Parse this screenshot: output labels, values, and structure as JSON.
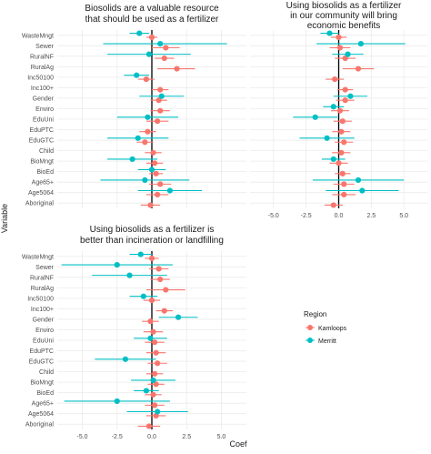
{
  "figure": {
    "x_axis_title": "Coef",
    "y_axis_title": "Variable"
  },
  "legend": {
    "title": "Region",
    "entries": [
      {
        "label": "Kamloops",
        "color": "#F8766D"
      },
      {
        "label": "Merritt",
        "color": "#00BFC4"
      }
    ]
  },
  "chart_data": [
    {
      "type": "scatter",
      "subtype": "coefficient-plot-with-error-bars",
      "title_lines": [
        "Biosolids are a valuable resource",
        "that should be used as a fertilizer"
      ],
      "xlabel": "",
      "ylabel": "Variable",
      "x_ticks_shown": false,
      "xlim": [
        -6.8,
        6.8
      ],
      "grid": true,
      "reference_line_x": 0,
      "variables": [
        "WasteMngt",
        "Sewer",
        "RuralNF",
        "RuralAg",
        "Inc50100",
        "Inc100+",
        "Gender",
        "Enviro",
        "EduUni",
        "EduPTC",
        "EduGTC",
        "Child",
        "BioMngt",
        "BioEd",
        "Age65+",
        "Age5064",
        "Aboriginal"
      ],
      "series": [
        {
          "name": "Kamloops",
          "color": "#F8766D",
          "estimates": [
            0.0,
            1.0,
            0.9,
            1.8,
            -0.4,
            0.6,
            0.5,
            0.6,
            0.4,
            -0.3,
            -0.5,
            0.1,
            0.2,
            0.3,
            0.6,
            0.4,
            -0.1
          ],
          "lower": [
            -0.4,
            0.0,
            0.2,
            0.4,
            -1.0,
            0.0,
            -0.1,
            -0.1,
            -0.4,
            -0.9,
            -1.1,
            -0.5,
            -0.4,
            -0.2,
            -0.2,
            -0.4,
            -0.8
          ],
          "upper": [
            0.4,
            2.0,
            1.6,
            3.1,
            0.2,
            1.2,
            1.1,
            1.3,
            1.2,
            0.3,
            0.1,
            0.7,
            0.8,
            0.8,
            1.4,
            1.2,
            0.6
          ]
        },
        {
          "name": "Merritt",
          "color": "#00BFC4",
          "estimates": [
            -0.9,
            0.6,
            -0.2,
            null,
            -1.1,
            null,
            0.7,
            null,
            -0.3,
            null,
            -1.0,
            null,
            -1.4,
            0.0,
            -0.5,
            1.3,
            null
          ],
          "lower": [
            -1.6,
            -3.5,
            -3.2,
            null,
            -2.0,
            null,
            -0.9,
            null,
            -2.5,
            null,
            -3.2,
            null,
            -3.2,
            -1.0,
            -3.7,
            -1.0,
            null
          ],
          "upper": [
            -0.2,
            5.4,
            2.8,
            null,
            -0.2,
            null,
            2.3,
            null,
            1.9,
            null,
            1.2,
            null,
            0.4,
            1.0,
            2.7,
            3.6,
            null
          ]
        }
      ]
    },
    {
      "type": "scatter",
      "subtype": "coefficient-plot-with-error-bars",
      "title_lines": [
        "Using biosolids as a fertilizer",
        "in our community will bring",
        "economic benefits"
      ],
      "xlabel": "",
      "ylabel": "",
      "x_tick_labels": [
        "-5.0",
        "-2.5",
        "0.0",
        "2.5",
        "5.0"
      ],
      "x_ticks": [
        -5,
        -2.5,
        0,
        2.5,
        5
      ],
      "xlim": [
        -6.8,
        6.8
      ],
      "grid": true,
      "reference_line_x": 0,
      "variables": [
        "WasteMngt",
        "Sewer",
        "RuralNF",
        "RuralAg",
        "Inc50100",
        "Inc100+",
        "Gender",
        "Enviro",
        "EduUni",
        "EduPTC",
        "EduGTC",
        "Child",
        "BioMngt",
        "BioEd",
        "Age65+",
        "Age5064",
        "Aboriginal"
      ],
      "series": [
        {
          "name": "Kamloops",
          "color": "#F8766D",
          "estimates": [
            0.0,
            0.1,
            0.5,
            1.5,
            -0.3,
            0.5,
            0.5,
            0.1,
            0.3,
            0.2,
            0.4,
            0.2,
            0.0,
            0.3,
            0.4,
            0.4,
            -0.4
          ],
          "lower": [
            -0.6,
            -0.7,
            -0.3,
            0.3,
            -1.0,
            -0.1,
            -0.2,
            -0.6,
            -0.4,
            -0.5,
            -0.3,
            -0.5,
            -0.7,
            -0.3,
            -0.4,
            -0.5,
            -1.1
          ],
          "upper": [
            0.6,
            0.9,
            1.3,
            2.7,
            0.4,
            1.1,
            1.2,
            0.8,
            1.0,
            0.9,
            1.1,
            0.9,
            0.7,
            0.9,
            1.2,
            1.3,
            0.3
          ]
        },
        {
          "name": "Merritt",
          "color": "#00BFC4",
          "estimates": [
            -0.7,
            1.7,
            0.7,
            null,
            null,
            null,
            0.9,
            -0.4,
            -1.8,
            null,
            -0.9,
            null,
            -0.4,
            null,
            1.5,
            1.8,
            null
          ],
          "lower": [
            -1.4,
            -1.7,
            -0.5,
            null,
            null,
            null,
            -0.4,
            -1.2,
            -3.5,
            null,
            -3.0,
            null,
            -1.3,
            null,
            -2.0,
            -1.0,
            null
          ],
          "upper": [
            0.0,
            5.1,
            1.9,
            null,
            null,
            null,
            2.2,
            0.4,
            -0.1,
            null,
            1.2,
            null,
            0.5,
            null,
            5.0,
            4.6,
            null
          ]
        }
      ]
    },
    {
      "type": "scatter",
      "subtype": "coefficient-plot-with-error-bars",
      "title_lines": [
        "Using biosolids as a fertilizer is",
        "better than incineration or landfilling"
      ],
      "xlabel": "Coef",
      "ylabel": "Variable",
      "x_tick_labels": [
        "-5.0",
        "-2.5",
        "0.0",
        "2.5",
        "5.0"
      ],
      "x_ticks": [
        -5,
        -2.5,
        0,
        2.5,
        5
      ],
      "xlim": [
        -6.8,
        6.8
      ],
      "grid": true,
      "reference_line_x": 0,
      "variables": [
        "WasteMngt",
        "Sewer",
        "RuralNF",
        "RuralAg",
        "Inc50100",
        "Inc100+",
        "Gender",
        "Enviro",
        "EduUni",
        "EduPTC",
        "EduGTC",
        "Child",
        "BioMngt",
        "BioEd",
        "Age65+",
        "Age5064",
        "Aboriginal"
      ],
      "series": [
        {
          "name": "Kamloops",
          "color": "#F8766D",
          "estimates": [
            0.0,
            0.5,
            0.6,
            1.0,
            0.0,
            0.9,
            -0.1,
            0.1,
            0.2,
            0.3,
            0.4,
            0.2,
            0.3,
            0.1,
            0.2,
            0.3,
            -0.2
          ],
          "lower": [
            -0.5,
            -0.2,
            -0.1,
            -0.4,
            -0.6,
            0.3,
            -0.7,
            -0.6,
            -0.5,
            -0.4,
            -0.3,
            -0.4,
            -0.3,
            -0.5,
            -0.5,
            -0.4,
            -1.0
          ],
          "upper": [
            0.5,
            1.2,
            1.3,
            2.4,
            0.6,
            1.5,
            0.5,
            0.8,
            0.9,
            1.0,
            1.1,
            0.8,
            0.9,
            0.7,
            0.9,
            1.0,
            0.6
          ]
        },
        {
          "name": "Merritt",
          "color": "#00BFC4",
          "estimates": [
            -0.8,
            -2.5,
            -1.6,
            null,
            -0.6,
            null,
            1.9,
            null,
            -0.1,
            null,
            -1.9,
            null,
            0.1,
            -0.4,
            -2.5,
            0.4,
            null
          ],
          "lower": [
            -1.6,
            -6.5,
            -4.3,
            null,
            -1.6,
            null,
            0.5,
            null,
            -1.3,
            null,
            -4.1,
            null,
            -1.5,
            -1.3,
            -6.3,
            -1.8,
            null
          ],
          "upper": [
            0.0,
            1.5,
            1.1,
            null,
            0.4,
            null,
            3.3,
            null,
            1.1,
            null,
            0.3,
            null,
            1.7,
            0.5,
            1.3,
            2.6,
            null
          ]
        }
      ]
    }
  ]
}
